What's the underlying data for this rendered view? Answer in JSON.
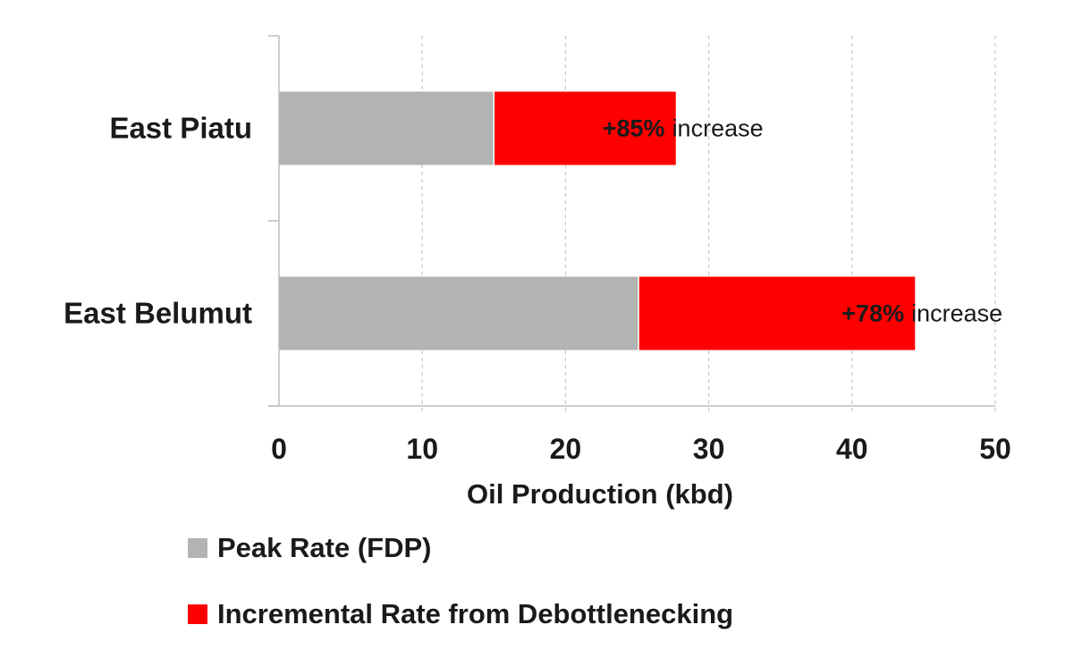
{
  "chart_data": {
    "type": "bar",
    "orientation": "horizontal",
    "stacked": true,
    "categories": [
      "East Piatu",
      "East Belumut"
    ],
    "series": [
      {
        "name": "Peak Rate (FDP)",
        "values": [
          15.0,
          25.1
        ],
        "color": "#b3b3b3"
      },
      {
        "name": "Incremental Rate from Debottlenecking",
        "values": [
          12.7,
          19.3
        ],
        "color": "#ff0000"
      }
    ],
    "annotations": [
      {
        "category": "East Piatu",
        "pct": "+85%",
        "word": "increase"
      },
      {
        "category": "East Belumut",
        "pct": "+78%",
        "word": "increase"
      }
    ],
    "xlabel": "Oil Production (kbd)",
    "xlim": [
      0,
      50
    ],
    "xticks": [
      "0",
      "10",
      "20",
      "30",
      "40",
      "50"
    ],
    "grid": "vertical dashed",
    "legend_position": "bottom"
  }
}
